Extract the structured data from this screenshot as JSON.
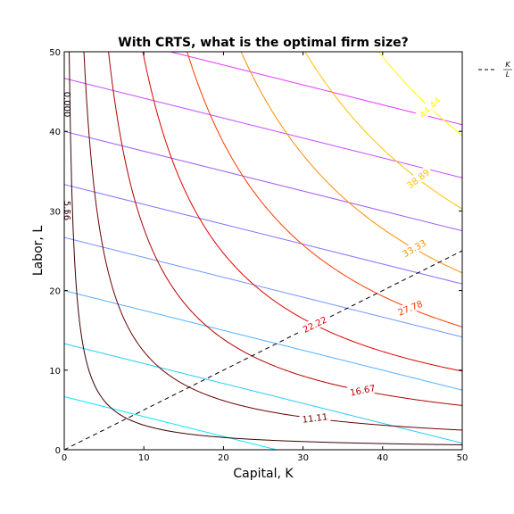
{
  "chart_data": {
    "type": "contour",
    "title": "With CRTS, what is the optimal firm size?",
    "xlabel": "Capital, K",
    "ylabel": "Labor, L",
    "xlim": [
      0,
      50
    ],
    "ylim": [
      0,
      50
    ],
    "xticks": [
      0,
      10,
      20,
      30,
      40,
      50
    ],
    "yticks": [
      0,
      10,
      20,
      30,
      40,
      50
    ],
    "grid": false,
    "legend": {
      "placement": "outside-top-right",
      "entries": [
        {
          "label": "K / L",
          "style": "black-dashed"
        }
      ]
    },
    "isoquants": {
      "function": "Q = K^0.5 * L^0.5",
      "levels": [
        {
          "level": 5.56,
          "label": "5.56",
          "color": "#3b0000"
        },
        {
          "level": 11.11,
          "label": "11.11",
          "color": "#6e0000"
        },
        {
          "level": 16.67,
          "label": "16.67",
          "color": "#b30000"
        },
        {
          "level": 22.22,
          "label": "22.22",
          "color": "#e10000"
        },
        {
          "level": 27.78,
          "label": "27.78",
          "color": "#ff3a00"
        },
        {
          "level": 33.33,
          "label": "33.33",
          "color": "#ff8c00"
        },
        {
          "level": 38.89,
          "label": "38.89",
          "color": "#ffc000"
        },
        {
          "level": 44.44,
          "label": "44.44",
          "color": "#ffff00"
        },
        {
          "level": 0.0,
          "label": "0.000",
          "color": "#000000"
        }
      ]
    },
    "isocost_lines": {
      "cost_at_y_intercept": [
        6.67,
        13.33,
        20.0,
        26.67,
        33.33,
        40.0,
        46.67,
        53.33
      ],
      "slope": -0.25,
      "colors": [
        "#00e5ff",
        "#20c8ff",
        "#4fb0ff",
        "#6e93ff",
        "#8a78ff",
        "#a560ff",
        "#c04bff",
        "#e233ff"
      ]
    },
    "ray": {
      "name": "K / L",
      "slope": 0.5,
      "x": [
        0,
        50
      ],
      "y": [
        0,
        25
      ],
      "style": "dashed",
      "color": "#000000"
    }
  }
}
